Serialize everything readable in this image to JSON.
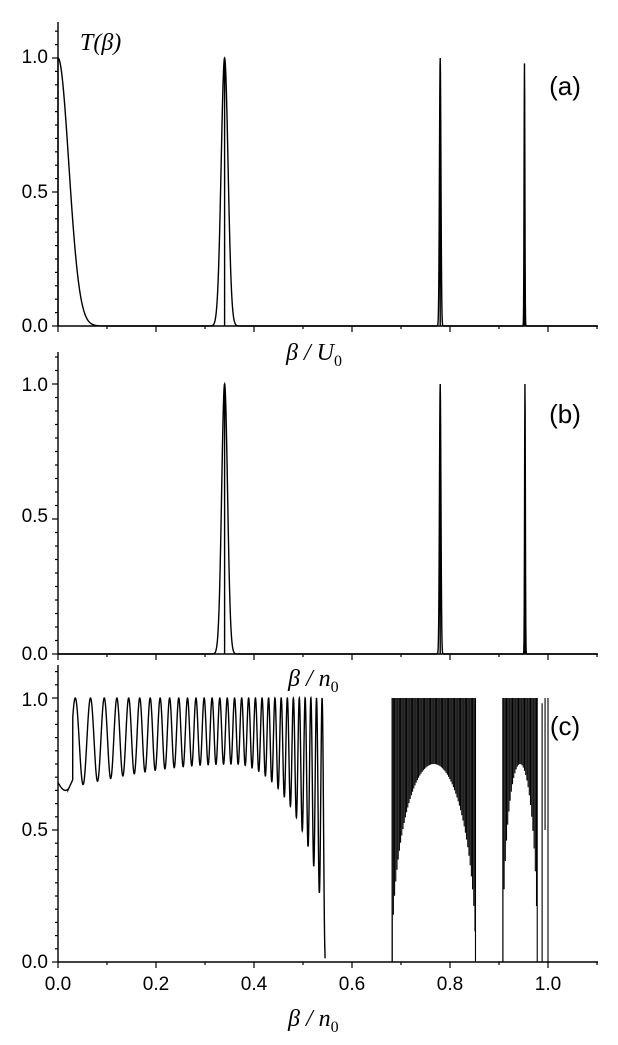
{
  "chart_data": [
    {
      "type": "line",
      "panel_label": "(a)",
      "ylabel": "T(β)",
      "xlabel": "β / U0",
      "xlim": [
        0,
        1.1
      ],
      "ylim": [
        0,
        1.1
      ],
      "yticks": [
        "0.0",
        "0.5",
        "1.0"
      ],
      "peaks": [
        {
          "center": 0.0,
          "height": 1.0,
          "width": 0.022
        },
        {
          "center": 0.34,
          "height": 1.0,
          "width": 0.007
        },
        {
          "center": 0.78,
          "height": 1.0,
          "width": 0.0015
        },
        {
          "center": 0.952,
          "height": 0.98,
          "width": 0.0008
        }
      ]
    },
    {
      "type": "line",
      "panel_label": "(b)",
      "xlabel": "β / n0",
      "xlim": [
        0,
        1.1
      ],
      "ylim": [
        0,
        1.1
      ],
      "yticks": [
        "0.0",
        "0.5",
        "1.0"
      ],
      "peaks": [
        {
          "center": 0.34,
          "height": 1.0,
          "width": 0.006
        },
        {
          "center": 0.78,
          "height": 1.0,
          "width": 0.0015
        },
        {
          "center": 0.953,
          "height": 1.0,
          "width": 0.0008
        }
      ]
    },
    {
      "type": "line",
      "panel_label": "(c)",
      "xlabel": "β / n0",
      "xlim": [
        0,
        1.1
      ],
      "ylim": [
        0,
        1.1
      ],
      "yticks": [
        "0.0",
        "0.5",
        "1.0"
      ],
      "xticks": [
        "0.0",
        "0.2",
        "0.4",
        "0.6",
        "0.8",
        "1.0"
      ],
      "bands": [
        {
          "start": 0.0,
          "end": 0.545,
          "min_at_start": 0.65,
          "peak_min": 0.75,
          "peak_at": 0.36
        },
        {
          "start": 0.682,
          "end": 0.852,
          "peak_min": 0.75,
          "peak_at": 0.767
        },
        {
          "start": 0.908,
          "end": 0.978,
          "peak_min": 0.75,
          "peak_at": 0.943
        },
        {
          "start": 0.988,
          "end": 1.0,
          "peak_min": 0.5,
          "peak_at": 0.994
        }
      ]
    }
  ],
  "labels": {
    "panel_a": "(a)",
    "panel_b": "(b)",
    "panel_c": "(c)",
    "ylabel_a_main": "T(",
    "ylabel_a_beta": "β",
    "ylabel_a_close": ")",
    "xlabel_a_main": "β / U",
    "xlabel_a_sub": "0",
    "xlabel_b_main": "β / n",
    "xlabel_b_sub": "0",
    "xlabel_c_main": "β / n",
    "xlabel_c_sub": "0"
  }
}
